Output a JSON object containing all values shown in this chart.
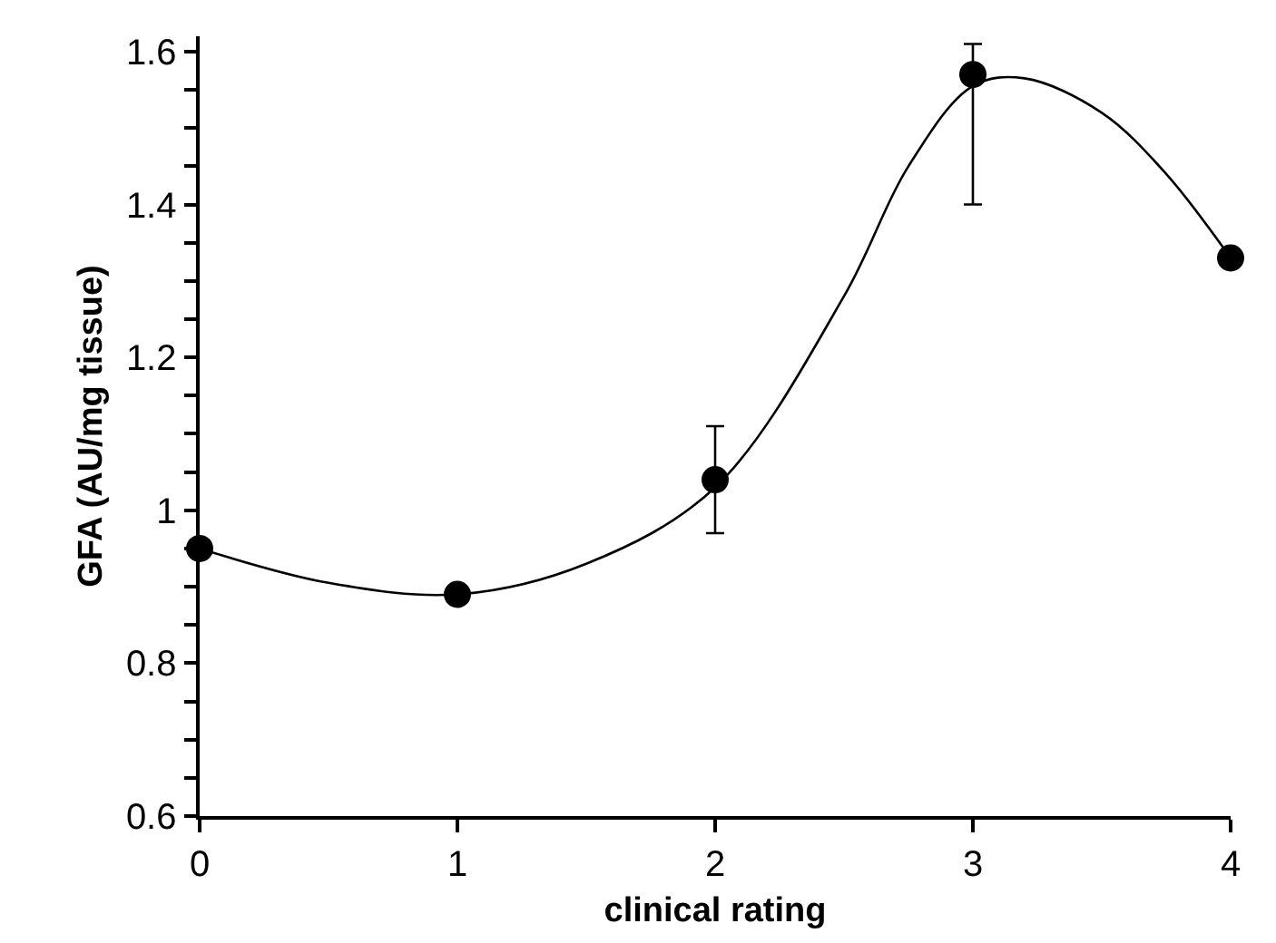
{
  "chart_data": {
    "type": "scatter",
    "xlabel": "clinical rating",
    "ylabel": "GFA (AU/mg tissue)",
    "x": [
      0,
      1,
      2,
      3,
      4
    ],
    "series": [
      {
        "type": "scatter",
        "color": "#000000",
        "values": [
          0.95,
          0.89,
          1.04,
          1.57,
          1.33
        ],
        "errors": [
          null,
          null,
          [
            0.97,
            1.11
          ],
          [
            1.4,
            1.61
          ],
          null
        ],
        "marker": "circle"
      },
      {
        "type": "line",
        "color": "#000000",
        "x": [
          0,
          0.5,
          1,
          1.5,
          2,
          2.5,
          2.75,
          3,
          3.2,
          3.5,
          3.75,
          4
        ],
        "values": [
          0.95,
          0.905,
          0.89,
          0.93,
          1.03,
          1.28,
          1.45,
          1.555,
          1.565,
          1.52,
          1.44,
          1.33
        ],
        "marker": "none",
        "line_style": "solid"
      }
    ],
    "xlim": [
      0,
      4
    ],
    "xticks": [
      0,
      1,
      2,
      3,
      4
    ],
    "ylim": [
      0.6,
      1.62
    ],
    "yticks": [
      0.6,
      {
        "value": 0.65,
        "label": null
      },
      {
        "value": 0.7,
        "label": null
      },
      {
        "value": 0.75,
        "label": null
      },
      0.8,
      {
        "value": 0.85,
        "label": null
      },
      {
        "value": 0.9,
        "label": null
      },
      {
        "value": 0.95,
        "label": null
      },
      1,
      {
        "value": 1.05,
        "label": null
      },
      {
        "value": 1.1,
        "label": null
      },
      {
        "value": 1.15,
        "label": null
      },
      1.2,
      {
        "value": 1.25,
        "label": null
      },
      {
        "value": 1.3,
        "label": null
      },
      {
        "value": 1.35,
        "label": null
      },
      1.4,
      {
        "value": 1.45,
        "label": null
      },
      {
        "value": 1.5,
        "label": null
      },
      {
        "value": 1.55,
        "label": null
      },
      1.6
    ],
    "grid": false
  }
}
